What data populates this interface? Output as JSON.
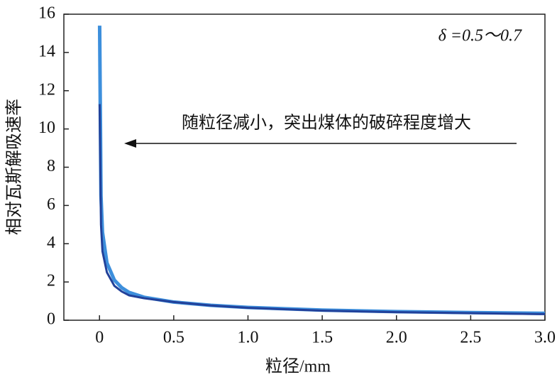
{
  "chart_data": {
    "type": "line",
    "xlabel": "粒径/mm",
    "ylabel": "相对瓦斯解吸速率",
    "annotations": [
      "δ =0.5～0.7",
      "随粒径减小，突出煤体的破碎程度增大"
    ],
    "x": [
      0.001,
      0.01,
      0.02,
      0.05,
      0.1,
      0.15,
      0.2,
      0.3,
      0.5,
      0.75,
      1.0,
      1.5,
      2.0,
      2.5,
      3.0
    ],
    "series": [
      {
        "color": "#3d8fdc",
        "values": [
          15.4,
          6.5,
          4.6,
          3.0,
          2.1,
          1.7,
          1.45,
          1.2,
          0.95,
          0.78,
          0.67,
          0.53,
          0.45,
          0.4,
          0.36
        ]
      },
      {
        "color": "#22419a",
        "values": [
          11.3,
          5.0,
          3.6,
          2.5,
          1.8,
          1.5,
          1.3,
          1.15,
          0.95,
          0.77,
          0.65,
          0.5,
          0.42,
          0.37,
          0.32
        ]
      }
    ],
    "xlim": [
      -0.24,
      3.0
    ],
    "xticks": [
      0,
      0.5,
      {
        "value": 1,
        "label": "1.0"
      },
      1.5,
      {
        "value": 2,
        "label": "2.0"
      },
      2.5,
      {
        "value": 3,
        "label": "3.0"
      }
    ],
    "ylim": [
      0,
      16
    ],
    "yticks": [
      0,
      2,
      4,
      6,
      8,
      10,
      12,
      14,
      16
    ]
  }
}
